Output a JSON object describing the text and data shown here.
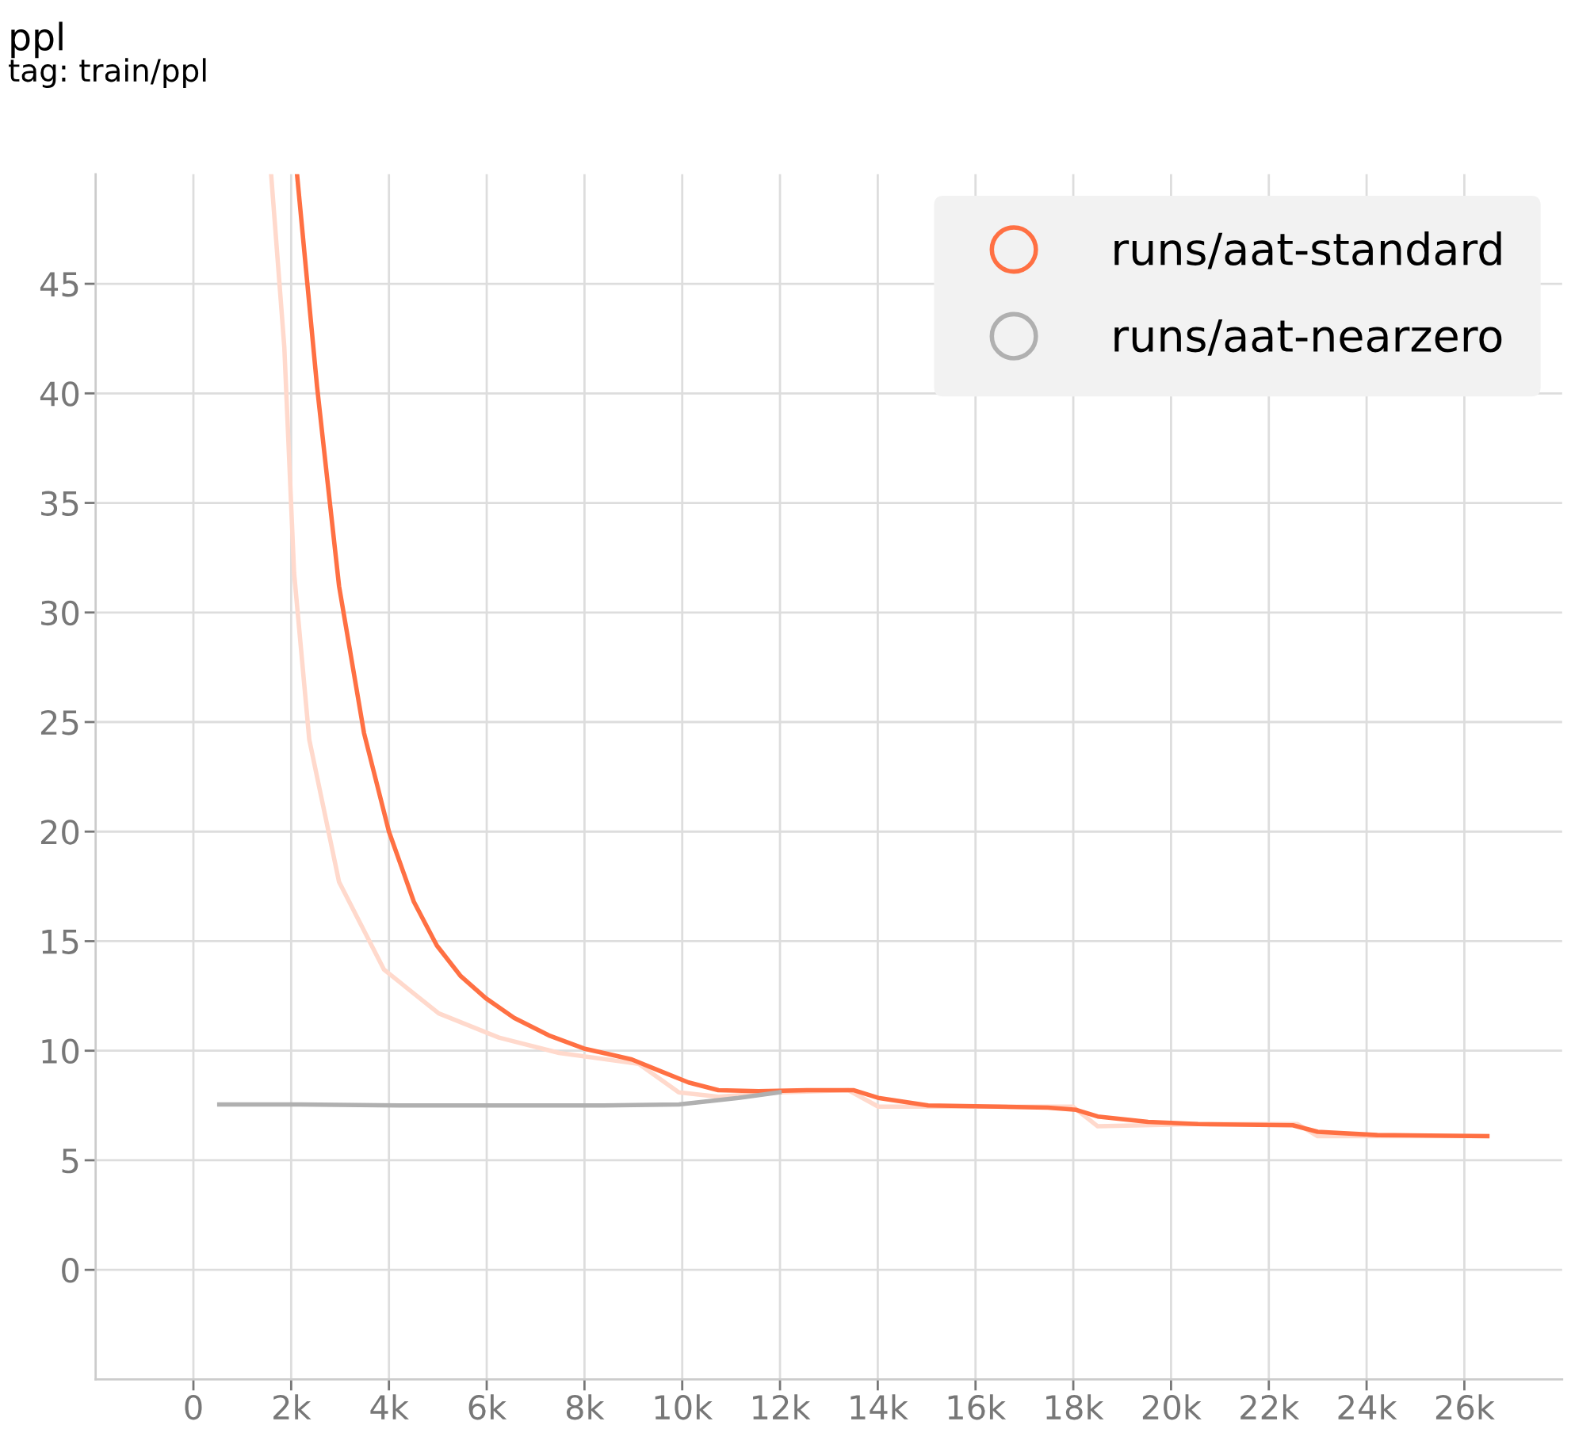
{
  "chart_data": {
    "type": "line",
    "title": "ppl",
    "subtitle": "tag: train/ppl",
    "series": [
      {
        "color": "#ffd9cc",
        "x": [
          1590,
          1860,
          2060,
          2370,
          2980,
          3900,
          5020,
          6250,
          7480,
          9110,
          9930,
          10740,
          11970,
          13400,
          14010,
          15650,
          17990,
          18500,
          20550,
          22590,
          23000,
          24630,
          26470
        ],
        "values": [
          50,
          42.1,
          31.8,
          24.2,
          17.7,
          13.7,
          11.7,
          10.6,
          9.9,
          9.4,
          8.1,
          7.9,
          8.1,
          8.2,
          7.45,
          7.45,
          7.45,
          6.55,
          6.65,
          6.65,
          6.1,
          6.1,
          6.1
        ]
      },
      {
        "name": "runs/aat-standard",
        "color": "#ff7043",
        "x": [
          2120,
          2530,
          2980,
          3490,
          4000,
          4510,
          4980,
          5470,
          5980,
          6560,
          7270,
          7990,
          8970,
          9520,
          10130,
          10740,
          11560,
          12580,
          13500,
          14010,
          15030,
          16460,
          17480,
          18060,
          18500,
          19530,
          20550,
          22490,
          23000,
          24220,
          26470
        ],
        "values": [
          50,
          40.3,
          31.2,
          24.5,
          20.0,
          16.8,
          14.8,
          13.4,
          12.4,
          11.5,
          10.7,
          10.1,
          9.6,
          9.1,
          8.55,
          8.2,
          8.15,
          8.2,
          8.2,
          7.85,
          7.5,
          7.45,
          7.4,
          7.3,
          7.0,
          6.75,
          6.65,
          6.6,
          6.3,
          6.15,
          6.1
        ]
      },
      {
        "name": "runs/aat-nearzero",
        "color": "#b0b0b0",
        "x": [
          530,
          2170,
          4210,
          6250,
          8290,
          9930,
          11150,
          11990
        ],
        "values": [
          7.55,
          7.55,
          7.5,
          7.5,
          7.5,
          7.55,
          7.85,
          8.1
        ]
      }
    ],
    "xlim": [
      -2000,
      28000
    ],
    "xticks": [
      {
        "value": 0,
        "label": "0"
      },
      {
        "value": 2000,
        "label": "2k"
      },
      {
        "value": 4000,
        "label": "4k"
      },
      {
        "value": 6000,
        "label": "6k"
      },
      {
        "value": 8000,
        "label": "8k"
      },
      {
        "value": 10000,
        "label": "10k"
      },
      {
        "value": 12000,
        "label": "12k"
      },
      {
        "value": 14000,
        "label": "14k"
      },
      {
        "value": 16000,
        "label": "16k"
      },
      {
        "value": 18000,
        "label": "18k"
      },
      {
        "value": 20000,
        "label": "20k"
      },
      {
        "value": 22000,
        "label": "22k"
      },
      {
        "value": 24000,
        "label": "24k"
      },
      {
        "value": 26000,
        "label": "26k"
      }
    ],
    "ylim": [
      -5,
      50
    ],
    "yticks": [
      0,
      5,
      10,
      15,
      20,
      25,
      30,
      35,
      40,
      45
    ],
    "grid": true,
    "legend": "top right"
  }
}
